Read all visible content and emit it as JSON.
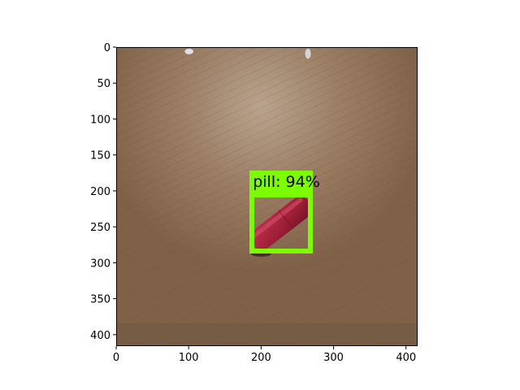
{
  "image": {
    "description_colors": {
      "surface": "#8d7058",
      "surface_light": "#a8917a",
      "pill": "#a8203c",
      "box": "#7cfc00"
    }
  },
  "detection": {
    "class_name": "pill",
    "confidence_percent": 94,
    "label_text": "pill: 94%",
    "box_data_units": {
      "x1": 183,
      "y1": 201,
      "x2": 270,
      "y2": 286
    },
    "box_color": "#7cfc00"
  },
  "axes": {
    "xlim": [
      0,
      416
    ],
    "ylim": [
      416,
      0
    ],
    "x_ticks": [
      0,
      100,
      200,
      300,
      400
    ],
    "y_ticks": [
      0,
      50,
      100,
      150,
      200,
      250,
      300,
      350,
      400
    ]
  }
}
